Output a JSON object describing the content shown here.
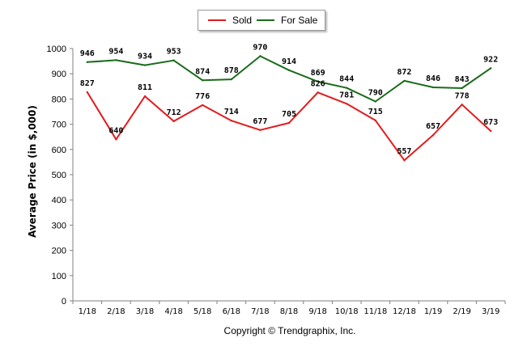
{
  "chart_data": {
    "type": "line",
    "categories": [
      "1/18",
      "2/18",
      "3/18",
      "4/18",
      "5/18",
      "6/18",
      "7/18",
      "8/18",
      "9/18",
      "10/18",
      "11/18",
      "12/18",
      "1/19",
      "2/19",
      "3/19"
    ],
    "series": [
      {
        "name": "Sold",
        "color": "#e31a1c",
        "values": [
          827,
          640,
          811,
          712,
          776,
          714,
          677,
          705,
          826,
          781,
          715,
          557,
          657,
          778,
          673
        ]
      },
      {
        "name": "For Sale",
        "color": "#1a6b1a",
        "values": [
          946,
          954,
          934,
          953,
          874,
          878,
          970,
          914,
          869,
          844,
          790,
          872,
          846,
          843,
          922
        ]
      }
    ],
    "ylabel": "Average Price (in $,000)",
    "ylim": [
      0,
      1000
    ],
    "yticks": [
      0,
      100,
      200,
      300,
      400,
      500,
      600,
      700,
      800,
      900,
      1000
    ],
    "legend_position": "top-center",
    "grid": false
  },
  "footer": "Copyright © Trendgraphix, Inc."
}
